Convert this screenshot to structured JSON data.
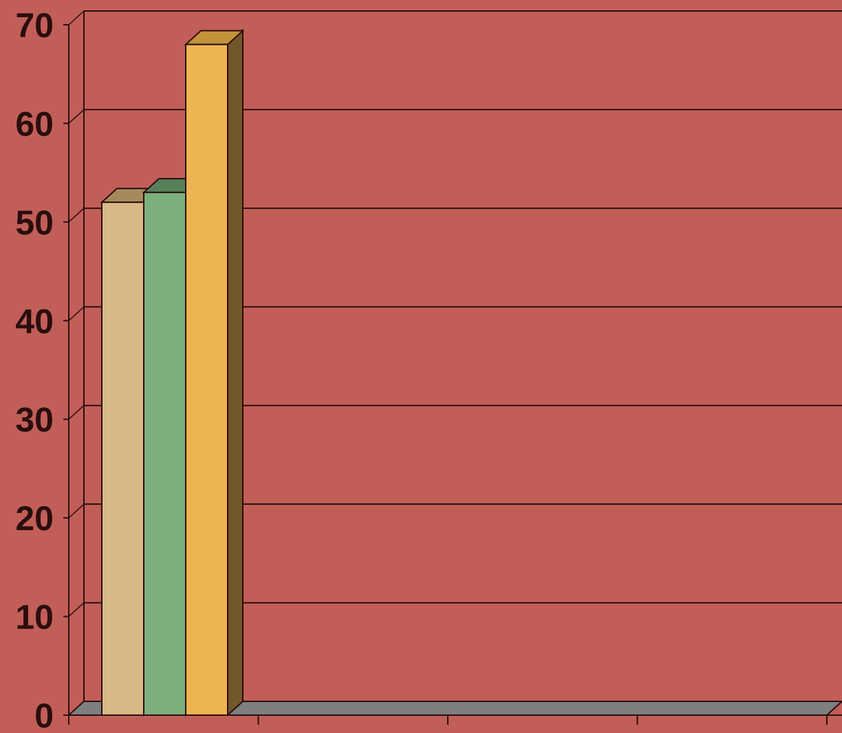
{
  "colors": {
    "background": "#c25e58",
    "floor": "#7f7f7f",
    "axis": "#2a0e0e"
  },
  "chart_data": {
    "type": "bar",
    "style": "3d-clustered-column",
    "grid": true,
    "ylim": [
      0,
      70
    ],
    "yticks": [
      "0",
      "10",
      "20",
      "30",
      "40",
      "50",
      "60",
      "70"
    ],
    "category_groups": 4,
    "series": [
      {
        "values": [
          52
        ],
        "color": "#d8b886",
        "side_color": "#a68a5c",
        "top_color": "#a68a5c"
      },
      {
        "values": [
          53
        ],
        "color": "#7caf7e",
        "side_color": "#57805a",
        "top_color": "#57805a"
      },
      {
        "values": [
          68
        ],
        "color": "#efb452",
        "side_color": "#735729",
        "top_color": "#c3923b"
      }
    ]
  }
}
